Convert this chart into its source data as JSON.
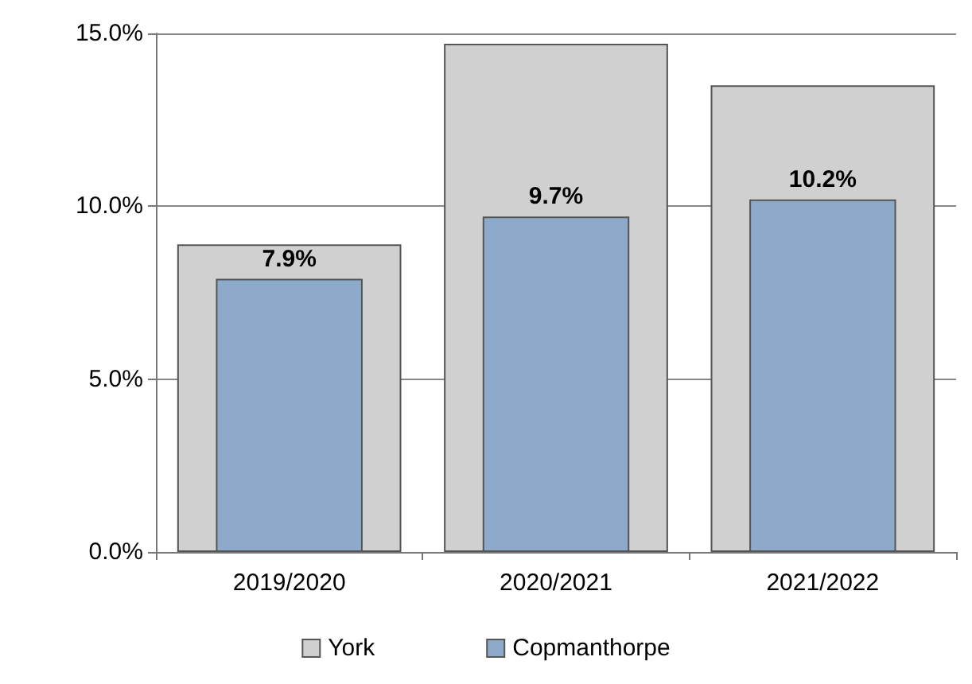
{
  "chart_data": {
    "type": "bar",
    "categories": [
      "2019/2020",
      "2020/2021",
      "2021/2022"
    ],
    "series": [
      {
        "name": "York",
        "color": "#d0d0d0",
        "values": [
          8.9,
          14.7,
          13.5
        ]
      },
      {
        "name": "Copmanthorpe",
        "color": "#8eaacb",
        "values": [
          7.9,
          9.7,
          10.2
        ],
        "value_labels": [
          "7.9%",
          "9.7%",
          "10.2%"
        ]
      }
    ],
    "ylim": [
      0,
      15
    ],
    "yticks": [
      {
        "value": 0,
        "label": "0.0%"
      },
      {
        "value": 5,
        "label": "5.0%"
      },
      {
        "value": 10,
        "label": "10.0%"
      },
      {
        "value": 15,
        "label": "15.0%"
      }
    ],
    "grid": "y",
    "legend": "bottom"
  }
}
